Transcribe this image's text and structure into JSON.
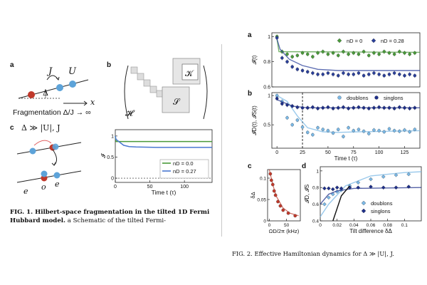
{
  "fig1": {
    "panel_labels": {
      "a": "a",
      "b": "b",
      "c": "c"
    },
    "a": {
      "J": "J",
      "U": "U",
      "Delta": "Δ",
      "x": "x",
      "fragmentation": "Fragmentation Δ/J → ∞"
    },
    "b": {
      "H": "𝓗",
      "K": "𝒦",
      "S": "𝒮"
    },
    "c": {
      "regime": "Δ ≫ |U|, J",
      "e1": "e",
      "o": "o",
      "e2": "e"
    },
    "caption_bold": "FIG. 1. Hilbert-space fragmentation in the tilted 1D Fermi Hubbard model.",
    "caption_rest": "a Schematic of the tilted Fermi-"
  },
  "fig2": {
    "panel_labels": {
      "a": "a",
      "b": "b",
      "c": "c",
      "d": "d"
    },
    "caption": "FIG. 2. Effective Hamiltonian dynamics for Δ ≫ |U|, J."
  },
  "chart_data": [
    {
      "id": "fig1c",
      "type": "line",
      "xlabel": "Time t (τ)",
      "ylabel": "𝓘",
      "xlim": [
        0,
        140
      ],
      "ylim": [
        -0.1,
        1.15
      ],
      "x_ticks": [
        0,
        50,
        100
      ],
      "y_ticks": [
        0,
        0.5,
        1
      ],
      "series": [
        {
          "name": "n_D = 0.0",
          "legend": "nD = 0.0",
          "color": "#4a9a3a",
          "points": [
            [
              0,
              1
            ],
            [
              1,
              0.87
            ],
            [
              10,
              0.87
            ],
            [
              140,
              0.87
            ]
          ]
        },
        {
          "name": "n_D = 0.27",
          "legend": "nD = 0.27",
          "color": "#4a78d0",
          "points": [
            [
              0,
              1
            ],
            [
              1,
              0.92
            ],
            [
              5,
              0.87
            ],
            [
              12,
              0.78
            ],
            [
              20,
              0.75
            ],
            [
              30,
              0.74
            ],
            [
              60,
              0.73
            ],
            [
              100,
              0.73
            ],
            [
              140,
              0.73
            ]
          ]
        }
      ]
    },
    {
      "id": "fig2a",
      "type": "scatter",
      "ylabel": "𝓘(t)",
      "xlim": [
        -5,
        140
      ],
      "ylim": [
        0.6,
        1.03
      ],
      "y_ticks": [
        0.6,
        0.8,
        1.0
      ],
      "series": [
        {
          "name": "n_D = 0",
          "legend": "nD = 0",
          "color": "#4a9a3a",
          "x": [
            0,
            5,
            10,
            15,
            20,
            25,
            30,
            35,
            40,
            45,
            50,
            55,
            60,
            65,
            70,
            75,
            80,
            85,
            90,
            95,
            100,
            105,
            110,
            115,
            120,
            125,
            130,
            135
          ],
          "y": [
            1.0,
            0.88,
            0.86,
            0.84,
            0.85,
            0.87,
            0.86,
            0.84,
            0.87,
            0.88,
            0.86,
            0.87,
            0.85,
            0.88,
            0.86,
            0.87,
            0.86,
            0.88,
            0.85,
            0.87,
            0.86,
            0.88,
            0.87,
            0.86,
            0.88,
            0.87,
            0.86,
            0.87
          ],
          "fit": [
            [
              0,
              0.98
            ],
            [
              2,
              0.88
            ],
            [
              140,
              0.875
            ]
          ]
        },
        {
          "name": "n_D = 0.28",
          "legend": "nD = 0.28",
          "color": "#2a3f9a",
          "x": [
            0,
            5,
            10,
            15,
            20,
            25,
            30,
            35,
            40,
            45,
            50,
            55,
            60,
            65,
            70,
            75,
            80,
            85,
            90,
            95,
            100,
            105,
            110,
            115,
            120,
            125,
            130,
            135
          ],
          "y": [
            0.99,
            0.83,
            0.8,
            0.76,
            0.74,
            0.73,
            0.72,
            0.71,
            0.7,
            0.7,
            0.71,
            0.7,
            0.69,
            0.71,
            0.7,
            0.7,
            0.71,
            0.69,
            0.7,
            0.71,
            0.7,
            0.69,
            0.7,
            0.71,
            0.7,
            0.69,
            0.7,
            0.69
          ],
          "fit": [
            [
              0,
              0.98
            ],
            [
              3,
              0.9
            ],
            [
              12,
              0.82
            ],
            [
              25,
              0.77
            ],
            [
              40,
              0.74
            ],
            [
              60,
              0.73
            ],
            [
              140,
              0.73
            ]
          ]
        }
      ]
    },
    {
      "id": "fig2b",
      "type": "scatter",
      "xlabel": "Time t (τ)",
      "ylabel": "𝓘D(t), 𝓘S(t)",
      "xlim": [
        -5,
        140
      ],
      "ylim": [
        0.1,
        1.05
      ],
      "x_ticks": [
        0,
        25,
        50,
        75,
        100,
        125
      ],
      "y_ticks": [
        0.5,
        1.0
      ],
      "marker_line_x": 25,
      "series": [
        {
          "name": "doublons",
          "legend": "doublons",
          "color": "#7ab8e6",
          "x": [
            0,
            5,
            10,
            15,
            20,
            25,
            30,
            35,
            40,
            45,
            50,
            55,
            60,
            65,
            70,
            75,
            80,
            85,
            90,
            95,
            100,
            105,
            110,
            115,
            120,
            125,
            130,
            135
          ],
          "y": [
            1.0,
            0.9,
            0.62,
            0.5,
            0.58,
            0.46,
            0.37,
            0.33,
            0.45,
            0.42,
            0.4,
            0.36,
            0.42,
            0.3,
            0.45,
            0.4,
            0.42,
            0.39,
            0.35,
            0.41,
            0.4,
            0.38,
            0.43,
            0.4,
            0.39,
            0.41,
            0.38,
            0.42
          ],
          "fit": [
            [
              0,
              1.0
            ],
            [
              10,
              0.9
            ],
            [
              20,
              0.65
            ],
            [
              30,
              0.45
            ],
            [
              45,
              0.38
            ],
            [
              60,
              0.37
            ],
            [
              80,
              0.38
            ],
            [
              140,
              0.4
            ]
          ]
        },
        {
          "name": "singlons",
          "legend": "singlons",
          "color": "#1e2f8a",
          "x": [
            0,
            5,
            10,
            15,
            20,
            25,
            30,
            35,
            40,
            45,
            50,
            55,
            60,
            65,
            70,
            75,
            80,
            85,
            90,
            95,
            100,
            105,
            110,
            115,
            120,
            125,
            130,
            135
          ],
          "y": [
            0.95,
            0.86,
            0.84,
            0.82,
            0.8,
            0.79,
            0.79,
            0.8,
            0.78,
            0.79,
            0.8,
            0.78,
            0.79,
            0.8,
            0.78,
            0.79,
            0.8,
            0.79,
            0.78,
            0.79,
            0.8,
            0.79,
            0.79,
            0.78,
            0.8,
            0.79,
            0.78,
            0.79
          ],
          "fit": [
            [
              0,
              0.93
            ],
            [
              15,
              0.82
            ],
            [
              30,
              0.79
            ],
            [
              140,
              0.79
            ]
          ]
        }
      ]
    },
    {
      "id": "fig2c",
      "type": "scatter",
      "xlabel": "ΩD/2π (kHz)",
      "ylabel": "δΔ",
      "xlim": [
        -5,
        90
      ],
      "ylim": [
        0,
        0.12
      ],
      "x_ticks": [
        0,
        50
      ],
      "y_ticks": [
        0,
        0.05,
        0.1
      ],
      "series": [
        {
          "name": "",
          "color": "#c0392b",
          "x": [
            3,
            6,
            10,
            14,
            18,
            25,
            32,
            40,
            55,
            75
          ],
          "y": [
            0.11,
            0.095,
            0.085,
            0.07,
            0.06,
            0.045,
            0.035,
            0.025,
            0.018,
            0.012
          ],
          "fit": [
            [
              0,
              0.12
            ],
            [
              10,
              0.085
            ],
            [
              20,
              0.058
            ],
            [
              40,
              0.03
            ],
            [
              60,
              0.018
            ],
            [
              85,
              0.012
            ]
          ]
        }
      ]
    },
    {
      "id": "fig2d",
      "type": "scatter",
      "xlabel": "Tilt difference δΔ",
      "ylabel": "𝓘D, 𝓘S",
      "xlim": [
        0,
        0.12
      ],
      "ylim": [
        0.4,
        1.05
      ],
      "x_ticks": [
        0,
        0.02,
        0.04,
        0.06,
        0.08,
        0.1
      ],
      "y_ticks": [
        0.4,
        0.6,
        0.8,
        1.0
      ],
      "series": [
        {
          "name": "doublons",
          "legend": "doublons",
          "color": "#7ab8e6",
          "x": [
            0.005,
            0.01,
            0.015,
            0.02,
            0.025,
            0.035,
            0.045,
            0.06,
            0.075,
            0.09,
            0.105
          ],
          "y": [
            0.6,
            0.68,
            0.72,
            0.75,
            0.77,
            0.82,
            0.86,
            0.9,
            0.93,
            0.95,
            0.96
          ],
          "fit": [
            [
              0,
              0.45
            ],
            [
              0.01,
              0.6
            ],
            [
              0.03,
              0.82
            ],
            [
              0.06,
              0.94
            ],
            [
              0.1,
              0.98
            ],
            [
              0.12,
              0.99
            ]
          ]
        },
        {
          "name": "singlons",
          "legend": "singlons",
          "color": "#1e2f8a",
          "x": [
            0.005,
            0.01,
            0.015,
            0.02,
            0.025,
            0.035,
            0.045,
            0.06,
            0.075,
            0.09,
            0.105
          ],
          "y": [
            0.79,
            0.79,
            0.78,
            0.8,
            0.79,
            0.8,
            0.8,
            0.81,
            0.8,
            0.8,
            0.81
          ],
          "fit": [
            [
              0,
              0.6
            ],
            [
              0.01,
              0.72
            ],
            [
              0.02,
              0.76
            ],
            [
              0.04,
              0.79
            ],
            [
              0.12,
              0.8
            ]
          ]
        },
        {
          "name": "",
          "color": "#111111",
          "fit": [
            [
              0.015,
              0.4
            ],
            [
              0.02,
              0.55
            ],
            [
              0.025,
              0.7
            ],
            [
              0.035,
              0.82
            ]
          ]
        }
      ]
    }
  ]
}
